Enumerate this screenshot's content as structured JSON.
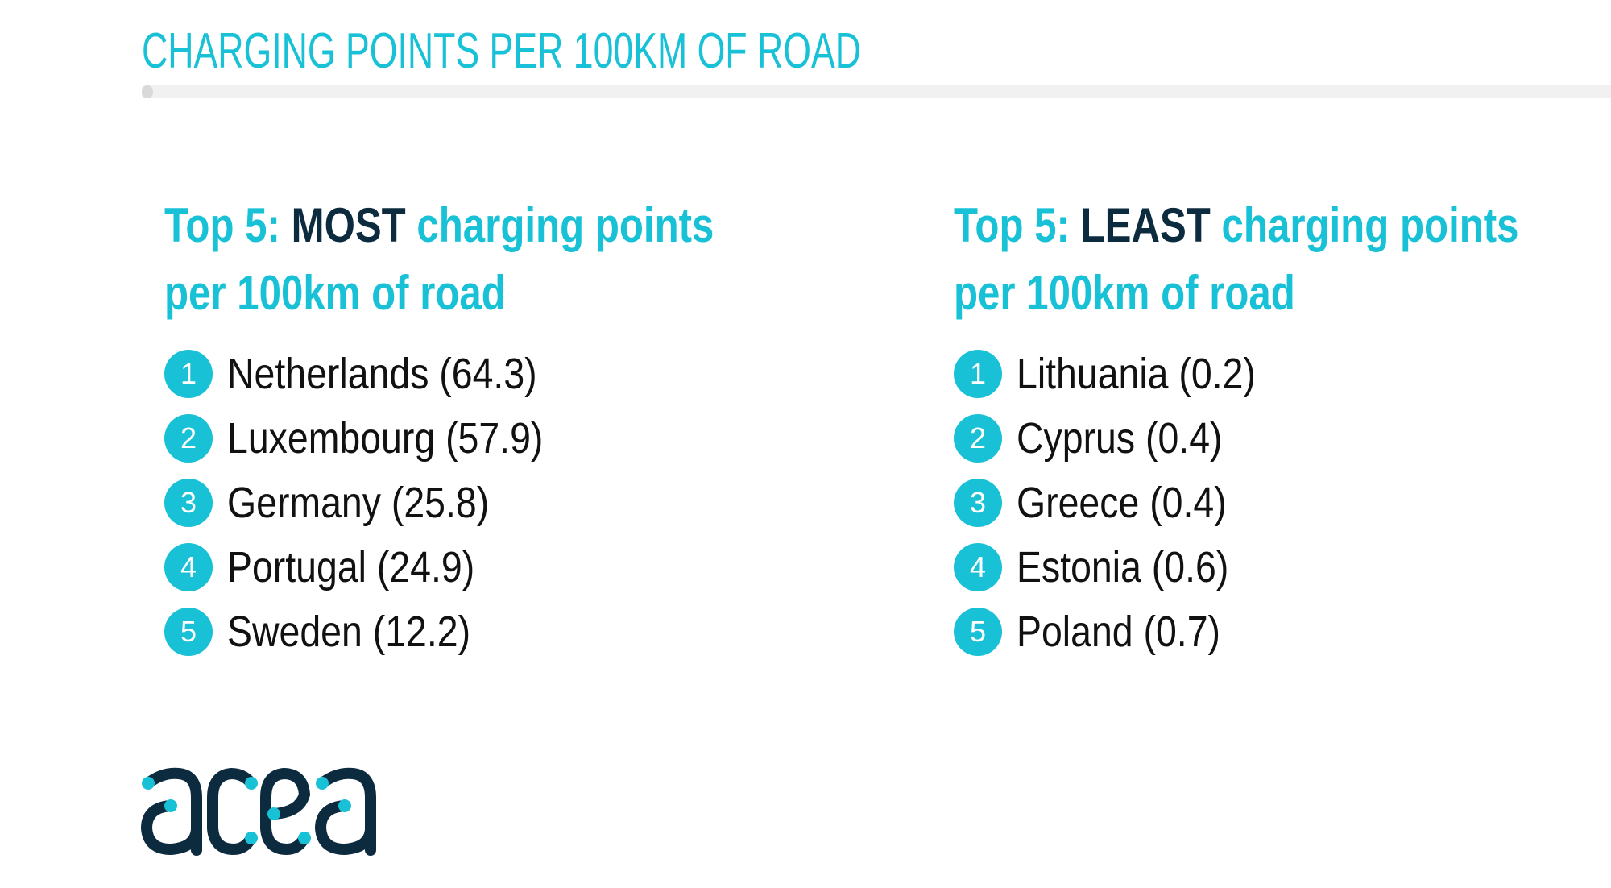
{
  "title": "CHARGING POINTS PER 100KM OF ROAD",
  "colors": {
    "accent": "#19c1d6",
    "dark": "#0d2b3e"
  },
  "most": {
    "heading_prefix": "Top 5: ",
    "heading_emphasis": "MOST",
    "heading_suffix": " charging points",
    "heading_line2": "per 100km of road",
    "items": [
      {
        "rank": "1",
        "text": "Netherlands (64.3)"
      },
      {
        "rank": "2",
        "text": "Luxembourg (57.9)"
      },
      {
        "rank": "3",
        "text": "Germany (25.8)"
      },
      {
        "rank": "4",
        "text": "Portugal (24.9)"
      },
      {
        "rank": "5",
        "text": "Sweden (12.2)"
      }
    ]
  },
  "least": {
    "heading_prefix": "Top 5: ",
    "heading_emphasis": "LEAST",
    "heading_suffix": " charging points",
    "heading_line2": "per 100km of road",
    "items": [
      {
        "rank": "1",
        "text": "Lithuania (0.2)"
      },
      {
        "rank": "2",
        "text": "Cyprus (0.4)"
      },
      {
        "rank": "3",
        "text": "Greece (0.4)"
      },
      {
        "rank": "4",
        "text": "Estonia (0.6)"
      },
      {
        "rank": "5",
        "text": "Poland (0.7)"
      }
    ]
  },
  "logo": {
    "text": "acea"
  }
}
